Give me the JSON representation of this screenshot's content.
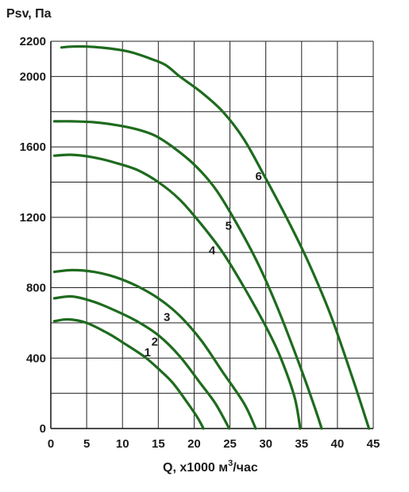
{
  "chart_data": {
    "type": "line",
    "ylabel": "Psv, Па",
    "xlabel_main": "Q, х1000 м",
    "xlabel_sup": "3",
    "xlabel_tail": "/час",
    "xlim": [
      0,
      45
    ],
    "ylim": [
      0,
      2200
    ],
    "x_ticks": [
      0,
      5,
      10,
      15,
      20,
      25,
      30,
      35,
      40,
      45
    ],
    "y_tick_labels": [
      0,
      400,
      800,
      1200,
      1600,
      2000,
      2200
    ],
    "y_gridlines": [
      0,
      200,
      400,
      600,
      800,
      1000,
      1200,
      1400,
      1600,
      1800,
      2000,
      2200
    ],
    "grid": true,
    "line_color": "#1e6b1e",
    "series": [
      {
        "name": "1",
        "label_at": [
          13.5,
          410
        ],
        "points": [
          [
            0.5,
            610
          ],
          [
            2.5,
            620
          ],
          [
            5,
            600
          ],
          [
            8,
            540
          ],
          [
            10,
            490
          ],
          [
            13,
            410
          ],
          [
            15,
            340
          ],
          [
            17,
            260
          ],
          [
            19,
            150
          ],
          [
            20.5,
            60
          ],
          [
            21.3,
            0
          ]
        ]
      },
      {
        "name": "2",
        "label_at": [
          14.5,
          470
        ],
        "points": [
          [
            0.5,
            740
          ],
          [
            3,
            750
          ],
          [
            6,
            720
          ],
          [
            9,
            670
          ],
          [
            12,
            610
          ],
          [
            15,
            530
          ],
          [
            18,
            410
          ],
          [
            21,
            250
          ],
          [
            23,
            140
          ],
          [
            24.9,
            0
          ]
        ]
      },
      {
        "name": "3",
        "label_at": [
          16.2,
          610
        ],
        "points": [
          [
            0.5,
            890
          ],
          [
            3,
            900
          ],
          [
            6,
            890
          ],
          [
            9,
            860
          ],
          [
            12,
            810
          ],
          [
            15,
            740
          ],
          [
            18,
            640
          ],
          [
            21,
            500
          ],
          [
            24,
            320
          ],
          [
            27,
            140
          ],
          [
            28.6,
            0
          ]
        ]
      },
      {
        "name": "4",
        "label_at": [
          22.5,
          990
        ],
        "points": [
          [
            0.5,
            1550
          ],
          [
            3,
            1555
          ],
          [
            6,
            1540
          ],
          [
            9,
            1510
          ],
          [
            12,
            1470
          ],
          [
            15,
            1400
          ],
          [
            18,
            1300
          ],
          [
            21,
            1160
          ],
          [
            24,
            1000
          ],
          [
            27,
            800
          ],
          [
            30,
            580
          ],
          [
            32,
            410
          ],
          [
            34,
            180
          ],
          [
            34.8,
            0
          ]
        ]
      },
      {
        "name": "5",
        "label_at": [
          24.8,
          1130
        ],
        "points": [
          [
            0.5,
            1745
          ],
          [
            3,
            1745
          ],
          [
            6,
            1740
          ],
          [
            9,
            1725
          ],
          [
            12,
            1700
          ],
          [
            14.5,
            1665
          ],
          [
            17,
            1600
          ],
          [
            20,
            1500
          ],
          [
            23,
            1360
          ],
          [
            26,
            1160
          ],
          [
            29,
            930
          ],
          [
            32,
            650
          ],
          [
            35,
            330
          ],
          [
            37,
            100
          ],
          [
            37.8,
            0
          ]
        ]
      },
      {
        "name": "6",
        "label_at": [
          29,
          1410
        ],
        "points": [
          [
            1.5,
            2165
          ],
          [
            3,
            2170
          ],
          [
            5,
            2170
          ],
          [
            8,
            2160
          ],
          [
            11,
            2140
          ],
          [
            14,
            2100
          ],
          [
            16,
            2065
          ],
          [
            18,
            2000
          ],
          [
            21,
            1910
          ],
          [
            24,
            1800
          ],
          [
            27,
            1640
          ],
          [
            30,
            1420
          ],
          [
            33,
            1190
          ],
          [
            36,
            940
          ],
          [
            39,
            650
          ],
          [
            42,
            300
          ],
          [
            44.4,
            0
          ]
        ]
      }
    ]
  }
}
